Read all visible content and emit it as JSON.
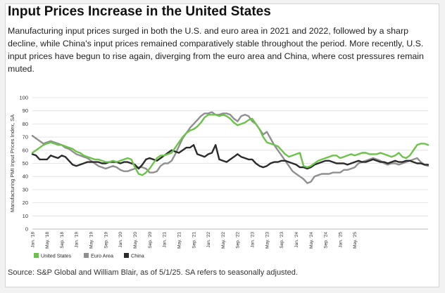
{
  "title": "Input Prices Increase in the United States",
  "subtitle": "Manufacturing input prices surged in both the U.S. and euro area in 2021 and 2022, followed by a sharp decline, while China's input prices remained comparatively stable throughout the period. More recently, U.S. input prices have begun to rise again, diverging from the euro area and China, where cost pressures remain muted.",
  "footnote": "Source: S&P Global and William Blair, as of 5/1/25. SA refers to seasonally adjusted.",
  "chart_data": {
    "type": "line",
    "ylabel": "Manufacturing PMI Input Prices Index, SA",
    "ylim": [
      0,
      100
    ],
    "yticks": [
      0,
      10,
      20,
      30,
      40,
      50,
      60,
      70,
      80,
      90,
      100
    ],
    "grid": true,
    "legend_position": "bottom-left",
    "x_tick_labels": [
      "Jan. '18",
      "May. '18",
      "Sep. '18",
      "Jan. '19",
      "May. '19",
      "Sep. '19",
      "Jan. '20",
      "May. '20",
      "Sep. '20",
      "Jan. '21",
      "May. '21",
      "Sep. '21",
      "Jan. '22",
      "May. '22",
      "Sep. '22",
      "Jan. '23",
      "May. '23",
      "Sep. '23",
      "Jan. '24",
      "May. '24",
      "Sep. '24",
      "Jan. '25",
      "May. '25"
    ],
    "start": "Jan. '18",
    "end": "May. '25",
    "series": [
      {
        "name": "United States",
        "color": "#6cc24a",
        "values": [
          58,
          60,
          62,
          64,
          65,
          66,
          65,
          64,
          64,
          63,
          62,
          61,
          59,
          58,
          56,
          55,
          54,
          53,
          53,
          52,
          51,
          51,
          52,
          51,
          52,
          53,
          54,
          53,
          47,
          42,
          41,
          43,
          46,
          50,
          54,
          56,
          56,
          57,
          58,
          62,
          66,
          70,
          73,
          75,
          76,
          78,
          81,
          85,
          87,
          87,
          87,
          86,
          87,
          86,
          84,
          81,
          79,
          80,
          81,
          83,
          84,
          80,
          76,
          70,
          66,
          65,
          64,
          63,
          60,
          57,
          55,
          56,
          57,
          58,
          48,
          47,
          48,
          50,
          52,
          53,
          54,
          55,
          56,
          56,
          54,
          55,
          56,
          57,
          56,
          57,
          58,
          58,
          57,
          57,
          57,
          58,
          57,
          56,
          55,
          56,
          58,
          55,
          54,
          56,
          60,
          64,
          65,
          65,
          64
        ]
      },
      {
        "name": "Euro Area",
        "color": "#8f8f8f",
        "values": [
          71,
          69,
          67,
          65,
          66,
          67,
          66,
          65,
          64,
          62,
          61,
          59,
          57,
          56,
          55,
          54,
          52,
          50,
          48,
          47,
          46,
          47,
          48,
          47,
          45,
          44,
          44,
          45,
          46,
          47,
          47,
          46,
          43,
          43,
          44,
          48,
          50,
          50,
          52,
          57,
          63,
          69,
          73,
          77,
          80,
          83,
          86,
          88,
          88,
          89,
          87,
          87,
          88,
          88,
          87,
          84,
          82,
          86,
          87,
          86,
          82,
          80,
          76,
          72,
          74,
          69,
          64,
          60,
          56,
          52,
          48,
          44,
          42,
          40,
          38,
          35,
          36,
          40,
          41,
          42,
          42,
          42,
          43,
          43,
          43,
          45,
          45,
          46,
          47,
          50,
          51,
          52,
          53,
          54,
          53,
          52,
          50,
          49,
          50,
          50,
          49,
          50,
          51,
          52,
          53,
          54,
          51,
          49,
          48
        ]
      },
      {
        "name": "China",
        "color": "#2b2b2b",
        "values": [
          57,
          56,
          53,
          53,
          53,
          56,
          55,
          54,
          56,
          55,
          52,
          49,
          48,
          49,
          50,
          51,
          51,
          51,
          51,
          50,
          50,
          51,
          51,
          51,
          50,
          51,
          51,
          50,
          49,
          46,
          49,
          53,
          54,
          53,
          52,
          54,
          56,
          58,
          60,
          59,
          58,
          60,
          62,
          62,
          64,
          57,
          56,
          55,
          57,
          58,
          64,
          53,
          52,
          51,
          53,
          55,
          57,
          55,
          54,
          53,
          53,
          50,
          48,
          47,
          48,
          50,
          51,
          51,
          52,
          52,
          51,
          50,
          49,
          47,
          47,
          46,
          47,
          49,
          50,
          51,
          52,
          52,
          51,
          50,
          50,
          50,
          49,
          50,
          51,
          52,
          51,
          51,
          52,
          53,
          52,
          51,
          51,
          50,
          51,
          52,
          51,
          51,
          52,
          52,
          51,
          50,
          50,
          49,
          49
        ]
      }
    ]
  }
}
